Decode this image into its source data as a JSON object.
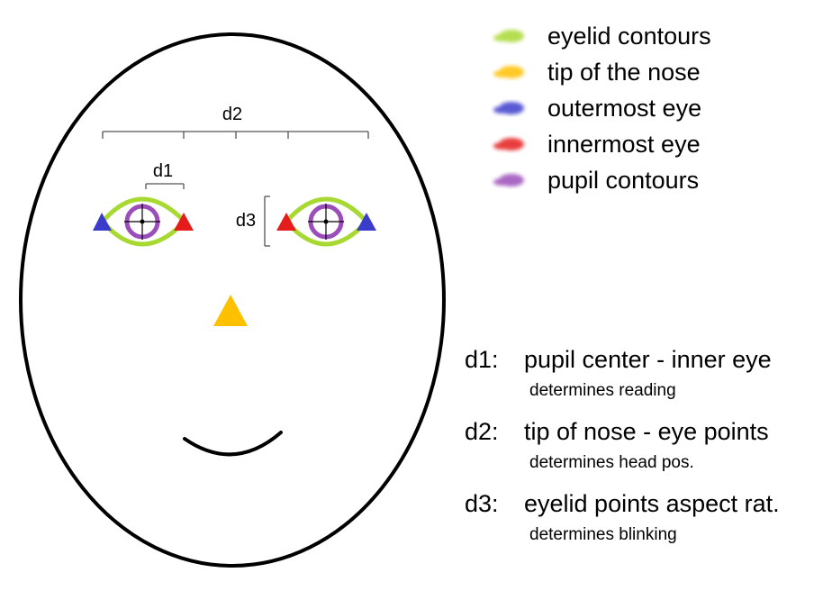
{
  "colors": {
    "eyelid": "#a8d932",
    "nose": "#ffc000",
    "outer_eye": "#3c3ccc",
    "inner_eye": "#e51c1c",
    "pupil": "#9b4dba",
    "outline": "#000000"
  },
  "diagram": {
    "labels": {
      "d1": "d1",
      "d2": "d2",
      "d3": "d3"
    }
  },
  "legend": [
    {
      "label": "eyelid contours",
      "color": "#a8d932",
      "icon": "green-brush-swatch"
    },
    {
      "label": "tip of the nose",
      "color": "#ffc000",
      "icon": "yellow-brush-swatch"
    },
    {
      "label": "outermost eye",
      "color": "#3c3ccc",
      "icon": "blue-brush-swatch"
    },
    {
      "label": "innermost eye",
      "color": "#e51c1c",
      "icon": "red-brush-swatch"
    },
    {
      "label": "pupil contours",
      "color": "#9b4dba",
      "icon": "purple-brush-swatch"
    }
  ],
  "metrics": [
    {
      "key": "d1:",
      "title": "pupil center - inner eye",
      "note": "determines reading"
    },
    {
      "key": "d2:",
      "title": "tip of nose - eye points",
      "note": "determines head pos."
    },
    {
      "key": "d3:",
      "title": "eyelid points aspect rat.",
      "note": "determines blinking"
    }
  ]
}
